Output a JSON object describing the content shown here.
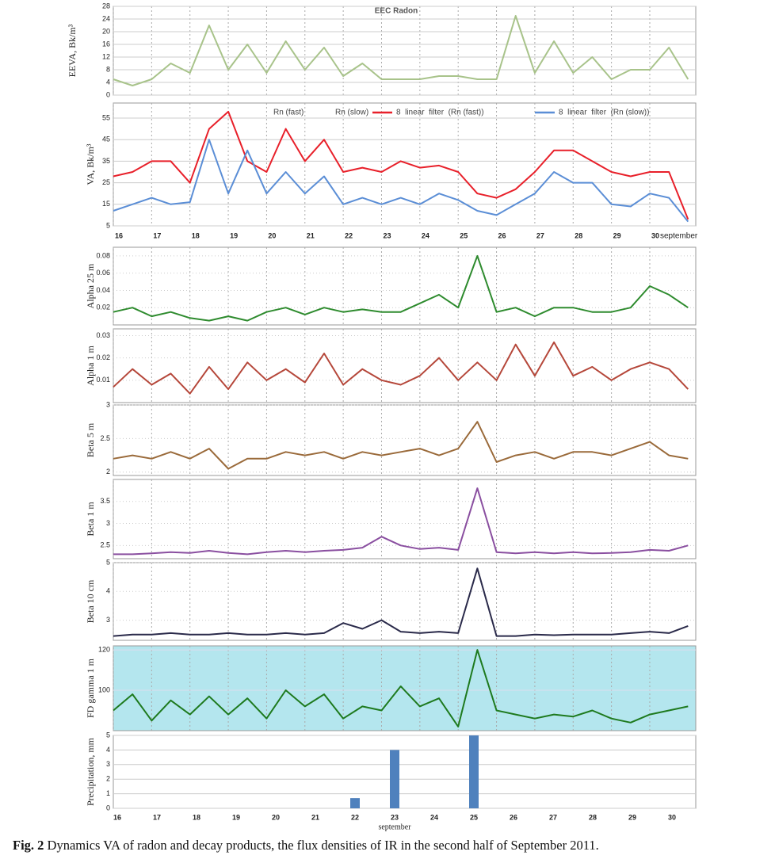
{
  "chart_data": [
    {
      "type": "line",
      "title": "EEC Radon",
      "y_label": "EEVA, Bk/m³",
      "xlim": [
        16,
        31.2
      ],
      "ylim": [
        0,
        28
      ],
      "yticks": [
        0,
        4,
        8,
        12,
        16,
        20,
        24,
        28
      ],
      "color": "#a8c38a",
      "x": [
        16,
        16.5,
        17,
        17.5,
        18,
        18.5,
        19,
        19.5,
        20,
        20.5,
        21,
        21.5,
        22,
        22.5,
        23,
        23.5,
        24,
        24.5,
        25,
        25.5,
        26,
        26.5,
        27,
        27.5,
        28,
        28.5,
        29,
        29.5,
        30,
        30.5,
        31
      ],
      "values": [
        5,
        3,
        5,
        10,
        7,
        22,
        8,
        16,
        7,
        17,
        8,
        15,
        6,
        10,
        5,
        5,
        5,
        6,
        6,
        5,
        5,
        25,
        7,
        17,
        7,
        12,
        5,
        8,
        8,
        15,
        5
      ]
    },
    {
      "type": "line",
      "y_label": "VA, Bk/m³",
      "x_label": "september",
      "xlim": [
        16,
        31.2
      ],
      "ylim": [
        5,
        62
      ],
      "yticks": [
        5,
        15,
        25,
        35,
        45,
        55
      ],
      "xticks": [
        16,
        17,
        18,
        19,
        20,
        21,
        22,
        23,
        24,
        25,
        26,
        27,
        28,
        29,
        30
      ],
      "legend_labels": [
        "Rn (fast)",
        "Rn (slow)"
      ],
      "x": [
        16,
        16.5,
        17,
        17.5,
        18,
        18.5,
        19,
        19.5,
        20,
        20.5,
        21,
        21.5,
        22,
        22.5,
        23,
        23.5,
        24,
        24.5,
        25,
        25.5,
        26,
        26.5,
        27,
        27.5,
        28,
        28.5,
        29,
        29.5,
        30,
        30.5,
        31
      ],
      "series": [
        {
          "name": "8  linear  filter  (Rn (fast))",
          "color": "#e8202a",
          "values": [
            28,
            30,
            35,
            35,
            25,
            50,
            58,
            35,
            30,
            50,
            35,
            45,
            30,
            32,
            30,
            35,
            32,
            33,
            30,
            20,
            18,
            22,
            30,
            40,
            40,
            35,
            30,
            28,
            30,
            30,
            8
          ]
        },
        {
          "name": "8  linear  filter  (Rn (slow))",
          "color": "#5b8ed6",
          "values": [
            12,
            15,
            18,
            15,
            16,
            45,
            20,
            40,
            20,
            30,
            20,
            28,
            15,
            18,
            15,
            18,
            15,
            20,
            17,
            12,
            10,
            15,
            20,
            30,
            25,
            25,
            15,
            14,
            20,
            18,
            7
          ]
        }
      ]
    },
    {
      "type": "line",
      "y_label": "Alpha 25 m",
      "xlim": [
        16,
        31.2
      ],
      "ylim": [
        0,
        0.09
      ],
      "yticks": [
        0.02,
        0.04,
        0.06,
        0.08
      ],
      "color": "#2e8b2e",
      "x": [
        16,
        16.5,
        17,
        17.5,
        18,
        18.5,
        19,
        19.5,
        20,
        20.5,
        21,
        21.5,
        22,
        22.5,
        23,
        23.5,
        24,
        24.5,
        25,
        25.5,
        26,
        26.5,
        27,
        27.5,
        28,
        28.5,
        29,
        29.5,
        30,
        30.5,
        31
      ],
      "values": [
        0.015,
        0.02,
        0.01,
        0.015,
        0.008,
        0.005,
        0.01,
        0.005,
        0.015,
        0.02,
        0.012,
        0.02,
        0.015,
        0.018,
        0.015,
        0.015,
        0.025,
        0.035,
        0.02,
        0.08,
        0.015,
        0.02,
        0.01,
        0.02,
        0.02,
        0.015,
        0.015,
        0.02,
        0.045,
        0.035,
        0.02
      ]
    },
    {
      "type": "line",
      "y_label": "Alpha 1 m",
      "xlim": [
        16,
        31.2
      ],
      "ylim": [
        0,
        0.033
      ],
      "yticks": [
        0.01,
        0.02,
        0.03
      ],
      "color": "#b5473a",
      "x": [
        16,
        16.5,
        17,
        17.5,
        18,
        18.5,
        19,
        19.5,
        20,
        20.5,
        21,
        21.5,
        22,
        22.5,
        23,
        23.5,
        24,
        24.5,
        25,
        25.5,
        26,
        26.5,
        27,
        27.5,
        28,
        28.5,
        29,
        29.5,
        30,
        30.5,
        31
      ],
      "values": [
        0.007,
        0.015,
        0.008,
        0.013,
        0.004,
        0.016,
        0.006,
        0.018,
        0.01,
        0.015,
        0.009,
        0.022,
        0.008,
        0.015,
        0.01,
        0.008,
        0.012,
        0.02,
        0.01,
        0.018,
        0.01,
        0.026,
        0.012,
        0.027,
        0.012,
        0.016,
        0.01,
        0.015,
        0.018,
        0.015,
        0.006
      ]
    },
    {
      "type": "line",
      "y_label": "Beta 5 m",
      "xlim": [
        16,
        31.2
      ],
      "ylim": [
        1.95,
        3
      ],
      "yticks": [
        2,
        2.5,
        3
      ],
      "color": "#9a6a3a",
      "x": [
        16,
        16.5,
        17,
        17.5,
        18,
        18.5,
        19,
        19.5,
        20,
        20.5,
        21,
        21.5,
        22,
        22.5,
        23,
        23.5,
        24,
        24.5,
        25,
        25.5,
        26,
        26.5,
        27,
        27.5,
        28,
        28.5,
        29,
        29.5,
        30,
        30.5,
        31
      ],
      "values": [
        2.2,
        2.25,
        2.2,
        2.3,
        2.2,
        2.35,
        2.05,
        2.2,
        2.2,
        2.3,
        2.25,
        2.3,
        2.2,
        2.3,
        2.25,
        2.3,
        2.35,
        2.25,
        2.35,
        2.75,
        2.15,
        2.25,
        2.3,
        2.2,
        2.3,
        2.3,
        2.25,
        2.35,
        2.45,
        2.25,
        2.2
      ]
    },
    {
      "type": "line",
      "y_label": "Beta 1 m",
      "xlim": [
        16,
        31.2
      ],
      "ylim": [
        2.2,
        4
      ],
      "yticks": [
        2.5,
        3,
        3.5
      ],
      "color": "#8a4fa0",
      "x": [
        16,
        16.5,
        17,
        17.5,
        18,
        18.5,
        19,
        19.5,
        20,
        20.5,
        21,
        21.5,
        22,
        22.5,
        23,
        23.5,
        24,
        24.5,
        25,
        25.5,
        26,
        26.5,
        27,
        27.5,
        28,
        28.5,
        29,
        29.5,
        30,
        30.5,
        31
      ],
      "values": [
        2.3,
        2.3,
        2.32,
        2.35,
        2.33,
        2.38,
        2.33,
        2.3,
        2.35,
        2.38,
        2.35,
        2.38,
        2.4,
        2.45,
        2.7,
        2.5,
        2.42,
        2.45,
        2.4,
        3.8,
        2.35,
        2.32,
        2.35,
        2.32,
        2.35,
        2.32,
        2.33,
        2.35,
        2.4,
        2.38,
        2.5
      ]
    },
    {
      "type": "line",
      "y_label": "Beta 10 cm",
      "xlim": [
        16,
        31.2
      ],
      "ylim": [
        2.3,
        5
      ],
      "yticks": [
        3,
        4,
        5
      ],
      "color": "#2a2a4a",
      "x": [
        16,
        16.5,
        17,
        17.5,
        18,
        18.5,
        19,
        19.5,
        20,
        20.5,
        21,
        21.5,
        22,
        22.5,
        23,
        23.5,
        24,
        24.5,
        25,
        25.5,
        26,
        26.5,
        27,
        27.5,
        28,
        28.5,
        29,
        29.5,
        30,
        30.5,
        31
      ],
      "values": [
        2.45,
        2.5,
        2.5,
        2.55,
        2.5,
        2.5,
        2.55,
        2.5,
        2.5,
        2.55,
        2.5,
        2.55,
        2.9,
        2.7,
        3.0,
        2.6,
        2.55,
        2.6,
        2.55,
        4.8,
        2.45,
        2.45,
        2.5,
        2.48,
        2.5,
        2.5,
        2.5,
        2.55,
        2.6,
        2.55,
        2.8
      ]
    },
    {
      "type": "line",
      "y_label": "FD gamma 1 m",
      "xlim": [
        16,
        31.2
      ],
      "ylim": [
        80,
        122
      ],
      "yticks": [
        100,
        120
      ],
      "color": "#1e7a1e",
      "x": [
        16,
        16.5,
        17,
        17.5,
        18,
        18.5,
        19,
        19.5,
        20,
        20.5,
        21,
        21.5,
        22,
        22.5,
        23,
        23.5,
        24,
        24.5,
        25,
        25.5,
        26,
        26.5,
        27,
        27.5,
        28,
        28.5,
        29,
        29.5,
        30,
        30.5,
        31
      ],
      "values": [
        90,
        98,
        85,
        95,
        88,
        97,
        88,
        96,
        86,
        100,
        92,
        98,
        86,
        92,
        90,
        102,
        92,
        96,
        82,
        120,
        90,
        88,
        86,
        88,
        87,
        90,
        86,
        84,
        88,
        90,
        92
      ]
    },
    {
      "type": "bar",
      "y_label": "Precipitation, mm",
      "x_label": "september",
      "xlim": [
        15.9,
        30.6
      ],
      "ylim": [
        0,
        5
      ],
      "yticks": [
        0,
        1,
        2,
        3,
        4,
        5
      ],
      "xticks": [
        16,
        17,
        18,
        19,
        20,
        21,
        22,
        23,
        24,
        25,
        26,
        27,
        28,
        29,
        30
      ],
      "color": "#4f81bd",
      "x": [
        22,
        23,
        25
      ],
      "values": [
        0.7,
        4,
        5
      ]
    }
  ],
  "caption": {
    "label": "Fig. 2",
    "text": "Dynamics VA of radon and decay products, the flux densities of IR in the second half of September 2011."
  }
}
